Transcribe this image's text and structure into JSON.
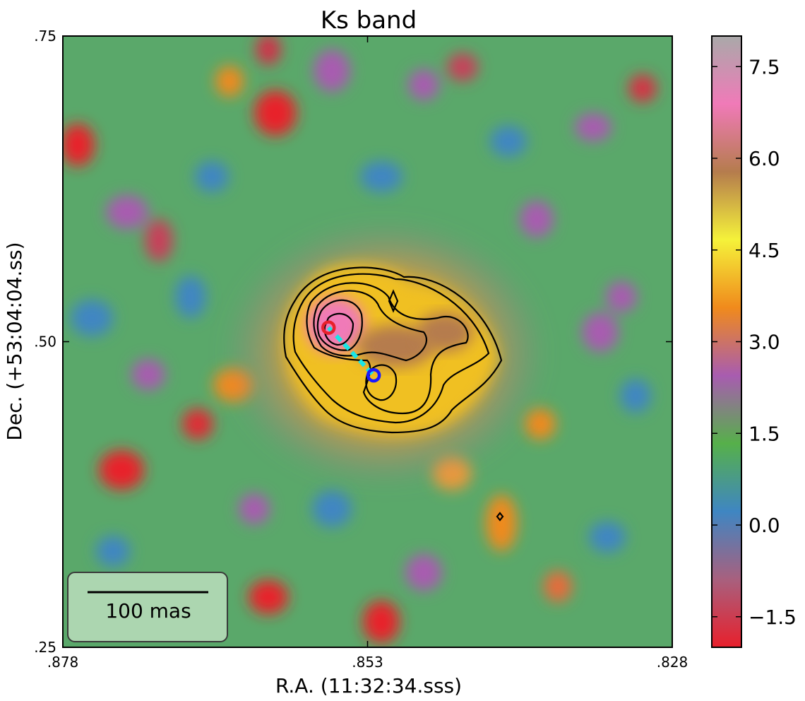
{
  "chart_data": {
    "type": "heatmap",
    "title": "Ks band",
    "xlabel": "R.A. (11:32:34.sss)",
    "ylabel": "Dec. (+53:04:04.ss)",
    "xlim": [
      0.878,
      0.828
    ],
    "ylim": [
      0.25,
      0.75
    ],
    "x_ticks": [
      {
        "value": 0.878,
        "label": ".878"
      },
      {
        "value": 0.853,
        "label": ".853"
      },
      {
        "value": 0.828,
        "label": ".828"
      }
    ],
    "y_ticks": [
      {
        "value": 0.75,
        "label": ".75"
      },
      {
        "value": 0.5,
        "label": ".50"
      },
      {
        "value": 0.25,
        "label": ".25"
      }
    ],
    "colorbar": {
      "range": [
        -2.0,
        8.0
      ],
      "ticks": [
        {
          "value": 7.5,
          "label": "7.5"
        },
        {
          "value": 6.0,
          "label": "6.0"
        },
        {
          "value": 4.5,
          "label": "4.5"
        },
        {
          "value": 3.0,
          "label": "3.0"
        },
        {
          "value": 1.5,
          "label": "1.5"
        },
        {
          "value": 0.0,
          "label": "0.0"
        },
        {
          "value": -1.5,
          "label": "−1.5"
        }
      ],
      "colors": [
        "#e8202c",
        "#a8607e",
        "#3f86c2",
        "#56b04a",
        "#a85cb0",
        "#f08a1c",
        "#f5f23a",
        "#b57c4d",
        "#f07ab8",
        "#a9a9a9"
      ]
    },
    "markers": [
      {
        "name": "red-circle",
        "ra": 0.8562,
        "dec": 0.5115,
        "color": "#e8202c"
      },
      {
        "name": "blue-circle",
        "ra": 0.8525,
        "dec": 0.4725,
        "color": "#1a1aff"
      }
    ],
    "connector_color": "#19e6e6",
    "scalebar": {
      "label": "100 mas",
      "length_mas": 100
    }
  }
}
